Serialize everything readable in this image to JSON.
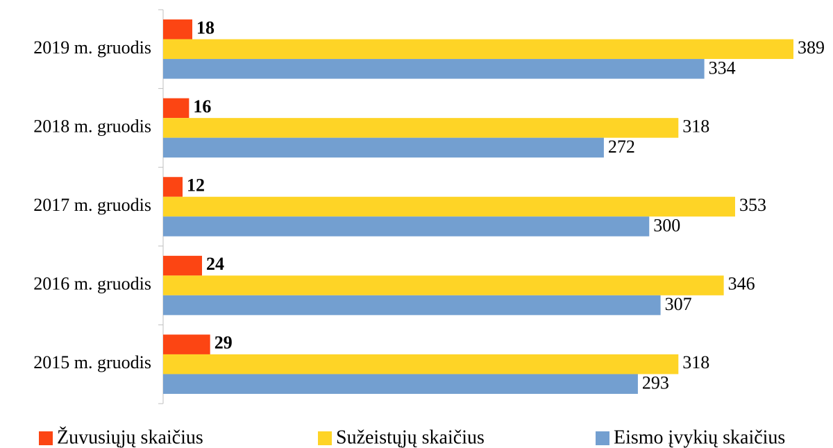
{
  "chart_data": {
    "type": "bar",
    "orientation": "horizontal",
    "categories": [
      "2019 m. gruodis",
      "2018 m. gruodis",
      "2017 m. gruodis",
      "2016 m. gruodis",
      "2015 m. gruodis"
    ],
    "series": [
      {
        "name": "Žuvusiųjų skaičius",
        "color": "#fc4513",
        "values": [
          18,
          16,
          12,
          24,
          29
        ]
      },
      {
        "name": "Sužeistųjų skaičius",
        "color": "#fed426",
        "values": [
          389,
          318,
          353,
          346,
          318
        ]
      },
      {
        "name": "Eismo įvykių skaičius",
        "color": "#739fd0",
        "values": [
          334,
          272,
          300,
          307,
          293
        ]
      }
    ],
    "legend": "bottom"
  }
}
